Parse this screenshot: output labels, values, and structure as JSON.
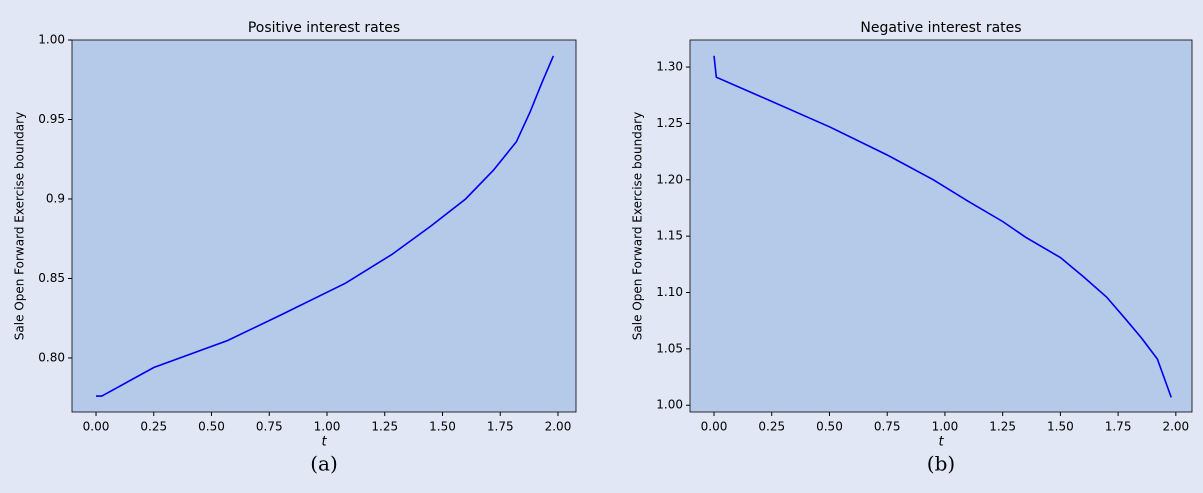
{
  "chart_data": [
    {
      "type": "line",
      "title": "Positive interest rates",
      "xlabel": "t",
      "ylabel": "Sale Open Forward Exercise boundary",
      "caption": "(a)",
      "color": "#0000ee",
      "x": [
        0,
        0.025,
        0.25,
        0.57,
        0.8,
        1.08,
        1.28,
        1.45,
        1.6,
        1.72,
        1.82,
        1.88,
        1.93,
        1.98
      ],
      "values": [
        0.776,
        0.776,
        0.794,
        0.811,
        0.827,
        0.847,
        0.865,
        0.883,
        0.9,
        0.918,
        0.936,
        0.955,
        0.973,
        0.99
      ],
      "xlim": [
        -0.104,
        2.078
      ],
      "ylim": [
        0.766,
        1.0
      ],
      "xticks": [
        {
          "value": 0,
          "label": "0.00"
        },
        {
          "value": 0.25,
          "label": "0.25"
        },
        {
          "value": 0.5,
          "label": "0.50"
        },
        {
          "value": 0.75,
          "label": "0.75"
        },
        {
          "value": 1,
          "label": "1.00"
        },
        {
          "value": 1.25,
          "label": "1.25"
        },
        {
          "value": 1.5,
          "label": "1.50"
        },
        {
          "value": 1.75,
          "label": "1.75"
        },
        {
          "value": 2,
          "label": "2.00"
        }
      ],
      "yticks": [
        {
          "value": 0.8,
          "label": "0.80"
        },
        0.85,
        0.9,
        0.95,
        {
          "value": 1,
          "label": "1.00"
        }
      ]
    },
    {
      "type": "line",
      "title": "Negative interest rates",
      "xlabel": "t",
      "ylabel": "Sale Open Forward Exercise boundary",
      "caption": "(b)",
      "color": "#0000ee",
      "x": [
        0,
        0.01,
        0.2,
        0.5,
        0.75,
        0.95,
        1.1,
        1.25,
        1.35,
        1.5,
        1.6,
        1.7,
        1.78,
        1.85,
        1.92,
        1.98
      ],
      "values": [
        1.31,
        1.291,
        1.274,
        1.247,
        1.222,
        1.2,
        1.181,
        1.163,
        1.149,
        1.131,
        1.114,
        1.096,
        1.077,
        1.06,
        1.041,
        1.007
      ],
      "xlim": [
        -0.104,
        2.07
      ],
      "ylim": [
        0.994,
        1.324
      ],
      "xticks": [
        {
          "value": 0,
          "label": "0.00"
        },
        {
          "value": 0.25,
          "label": "0.25"
        },
        {
          "value": 0.5,
          "label": "0.50"
        },
        {
          "value": 0.75,
          "label": "0.75"
        },
        {
          "value": 1,
          "label": "1.00"
        },
        {
          "value": 1.25,
          "label": "1.25"
        },
        {
          "value": 1.5,
          "label": "1.50"
        },
        {
          "value": 1.75,
          "label": "1.75"
        },
        {
          "value": 2,
          "label": "2.00"
        }
      ],
      "yticks": [
        {
          "value": 1,
          "label": "1.00"
        },
        1.05,
        {
          "value": 1.1,
          "label": "1.10"
        },
        1.15,
        {
          "value": 1.2,
          "label": "1.20"
        },
        1.25,
        {
          "value": 1.3,
          "label": "1.30"
        }
      ]
    }
  ]
}
